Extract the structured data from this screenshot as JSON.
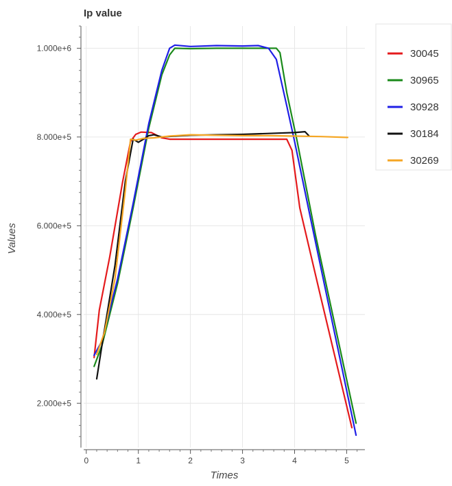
{
  "chart_data": {
    "type": "line",
    "title": "Ip value",
    "xlabel": "Times",
    "ylabel": "Values",
    "xlim": [
      -0.05,
      5.35
    ],
    "ylim": [
      100000,
      1050000
    ],
    "grid": true,
    "legend_position": "right",
    "x_ticks": [
      0,
      1,
      2,
      3,
      4,
      5
    ],
    "x_tick_labels": [
      "0",
      "1",
      "2",
      "3",
      "4",
      "5"
    ],
    "y_ticks": [
      200000,
      400000,
      600000,
      800000,
      1000000
    ],
    "y_tick_labels": [
      "2.000e+5",
      "4.000e+5",
      "6.000e+5",
      "8.000e+5",
      "1.000e+6"
    ],
    "series": [
      {
        "name": "30045",
        "color": "#e41a1c",
        "points": [
          [
            0.15,
            303000
          ],
          [
            0.25,
            410000
          ],
          [
            0.45,
            530000
          ],
          [
            0.7,
            700000
          ],
          [
            0.85,
            790000
          ],
          [
            0.95,
            806000
          ],
          [
            1.05,
            811000
          ],
          [
            1.25,
            810000
          ],
          [
            1.45,
            798000
          ],
          [
            1.6,
            795000
          ],
          [
            2.0,
            795000
          ],
          [
            2.5,
            795000
          ],
          [
            3.0,
            795000
          ],
          [
            3.5,
            795000
          ],
          [
            3.85,
            795000
          ],
          [
            3.95,
            770000
          ],
          [
            4.1,
            640000
          ],
          [
            4.5,
            440000
          ],
          [
            5.1,
            145000
          ]
        ]
      },
      {
        "name": "30965",
        "color": "#1a8a1a",
        "points": [
          [
            0.15,
            283000
          ],
          [
            0.3,
            330000
          ],
          [
            0.6,
            470000
          ],
          [
            0.9,
            640000
          ],
          [
            1.2,
            820000
          ],
          [
            1.45,
            940000
          ],
          [
            1.6,
            985000
          ],
          [
            1.7,
            1000000
          ],
          [
            2.0,
            999000
          ],
          [
            2.5,
            1000000
          ],
          [
            3.0,
            1000000
          ],
          [
            3.5,
            1000000
          ],
          [
            3.65,
            1000000
          ],
          [
            3.72,
            990000
          ],
          [
            3.85,
            900000
          ],
          [
            4.05,
            790000
          ],
          [
            4.4,
            580000
          ],
          [
            5.18,
            155000
          ]
        ]
      },
      {
        "name": "30928",
        "color": "#1f1fe6",
        "points": [
          [
            0.15,
            308000
          ],
          [
            0.3,
            340000
          ],
          [
            0.6,
            480000
          ],
          [
            0.9,
            650000
          ],
          [
            1.2,
            830000
          ],
          [
            1.45,
            950000
          ],
          [
            1.6,
            1000000
          ],
          [
            1.7,
            1007000
          ],
          [
            2.0,
            1004000
          ],
          [
            2.5,
            1006000
          ],
          [
            3.0,
            1005000
          ],
          [
            3.3,
            1006000
          ],
          [
            3.5,
            1000000
          ],
          [
            3.65,
            975000
          ],
          [
            3.85,
            870000
          ],
          [
            4.0,
            790000
          ],
          [
            4.3,
            620000
          ],
          [
            5.18,
            128000
          ]
        ]
      },
      {
        "name": "30184",
        "color": "#111111",
        "points": [
          [
            0.2,
            255000
          ],
          [
            0.3,
            330000
          ],
          [
            0.55,
            510000
          ],
          [
            0.75,
            700000
          ],
          [
            0.9,
            795000
          ],
          [
            1.0,
            788000
          ],
          [
            1.1,
            795000
          ],
          [
            1.2,
            803000
          ],
          [
            1.3,
            805000
          ],
          [
            1.45,
            800000
          ],
          [
            1.7,
            802000
          ],
          [
            2.0,
            804000
          ],
          [
            2.5,
            805000
          ],
          [
            3.0,
            806000
          ],
          [
            3.5,
            808000
          ],
          [
            4.0,
            810000
          ],
          [
            4.2,
            812000
          ],
          [
            4.28,
            802000
          ]
        ]
      },
      {
        "name": "30269",
        "color": "#f5a623",
        "points": [
          [
            0.2,
            310000
          ],
          [
            0.35,
            360000
          ],
          [
            0.55,
            480000
          ],
          [
            0.75,
            680000
          ],
          [
            0.85,
            795000
          ],
          [
            0.95,
            793000
          ],
          [
            1.1,
            797000
          ],
          [
            1.3,
            798000
          ],
          [
            1.6,
            802000
          ],
          [
            2.0,
            805000
          ],
          [
            2.5,
            804000
          ],
          [
            3.0,
            803000
          ],
          [
            3.5,
            803000
          ],
          [
            4.0,
            802000
          ],
          [
            4.5,
            801000
          ],
          [
            5.02,
            799000
          ]
        ]
      }
    ]
  }
}
